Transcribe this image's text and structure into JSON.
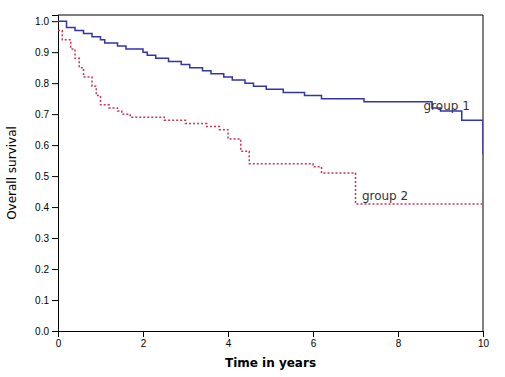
{
  "chart_data": {
    "type": "step",
    "xlabel": "Time in years",
    "ylabel": "Overall survival",
    "series": [
      {
        "color": "#3333aa",
        "line_style": "solid",
        "x": [
          0,
          0.2,
          0.4,
          0.6,
          0.8,
          1.0,
          1.1,
          1.4,
          1.6,
          2.0,
          2.1,
          2.3,
          2.6,
          2.9,
          3.1,
          3.4,
          3.6,
          3.9,
          4.1,
          4.4,
          4.6,
          4.9,
          5.3,
          5.8,
          6.2,
          7.2,
          8.8,
          9.0,
          9.5,
          10.0
        ],
        "values": [
          1.0,
          0.98,
          0.97,
          0.96,
          0.95,
          0.94,
          0.93,
          0.92,
          0.91,
          0.9,
          0.89,
          0.88,
          0.87,
          0.86,
          0.85,
          0.84,
          0.83,
          0.82,
          0.81,
          0.8,
          0.79,
          0.78,
          0.77,
          0.76,
          0.75,
          0.74,
          0.72,
          0.71,
          0.68,
          0.57
        ]
      },
      {
        "color": "#cc3355",
        "line_style": "dotted",
        "x": [
          0,
          0.1,
          0.3,
          0.4,
          0.5,
          0.6,
          0.8,
          0.9,
          1.0,
          1.2,
          1.4,
          1.5,
          1.7,
          2.0,
          2.5,
          3.0,
          3.5,
          3.8,
          4.0,
          4.3,
          4.5,
          5.5,
          6.0,
          6.2,
          7.0,
          10.0
        ],
        "values": [
          0.97,
          0.94,
          0.91,
          0.88,
          0.85,
          0.82,
          0.79,
          0.76,
          0.73,
          0.72,
          0.71,
          0.7,
          0.69,
          0.69,
          0.68,
          0.67,
          0.66,
          0.65,
          0.62,
          0.58,
          0.54,
          0.54,
          0.53,
          0.51,
          0.41,
          0.41
        ]
      }
    ],
    "annotations": [
      {
        "text": "group 1",
        "x": 8.6,
        "y": 0.725
      },
      {
        "text": "group 2",
        "x": 7.15,
        "y": 0.435
      }
    ],
    "xlim": [
      0,
      10
    ],
    "ylim": [
      0.0,
      1.02
    ],
    "xticks": [
      0,
      2,
      4,
      6,
      8,
      10
    ],
    "yticks": [
      {
        "value": 0.0,
        "label": "0.0"
      },
      0.1,
      0.2,
      0.3,
      0.4,
      0.5,
      0.6,
      0.7,
      0.8,
      0.9,
      {
        "value": 1.0,
        "label": "1.0"
      }
    ],
    "grid": false
  }
}
